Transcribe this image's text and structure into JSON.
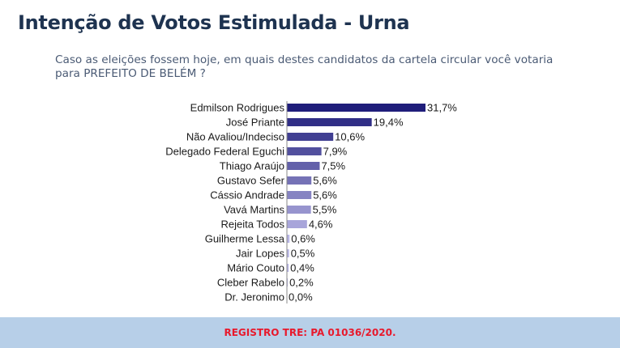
{
  "header": {
    "title": "Intenção de Votos Estimulada - Urna",
    "subtitle": "Caso as eleições fossem hoje, em quais destes candidatos da cartela circular você votaria para PREFEITO DE BELÉM ?"
  },
  "footer": {
    "text": "REGISTRO TRE: PA 01036/2020."
  },
  "colors": {
    "title": "#1e3350",
    "footer_bg": "#b7cfe8",
    "footer_text": "#e8192c",
    "bar_dark": "#1f1d7a",
    "bar_light": "#b9b6e6"
  },
  "chart_data": {
    "type": "bar",
    "orientation": "horizontal",
    "categories": [
      "Edmilson Rodrigues",
      "José Priante",
      "Não Avaliou/Indeciso",
      "Delegado Federal Eguchi",
      "Thiago Araújo",
      "Gustavo Sefer",
      "Cássio Andrade",
      "Vavá Martins",
      "Rejeita Todos",
      "Guilherme Lessa",
      "Jair Lopes",
      "Mário Couto",
      "Cleber Rabelo",
      "Dr. Jeronimo"
    ],
    "values": [
      31.7,
      19.4,
      10.6,
      7.9,
      7.5,
      5.6,
      5.6,
      5.5,
      4.6,
      0.6,
      0.5,
      0.4,
      0.2,
      0.0
    ],
    "value_labels": [
      "31,7%",
      "19,4%",
      "10,6%",
      "7,9%",
      "7,5%",
      "5,6%",
      "5,6%",
      "5,5%",
      "4,6%",
      "0,6%",
      "0,5%",
      "0,4%",
      "0,2%",
      "0,0%"
    ],
    "xlim": [
      0,
      31.7
    ],
    "grid": false,
    "legend": "none"
  }
}
